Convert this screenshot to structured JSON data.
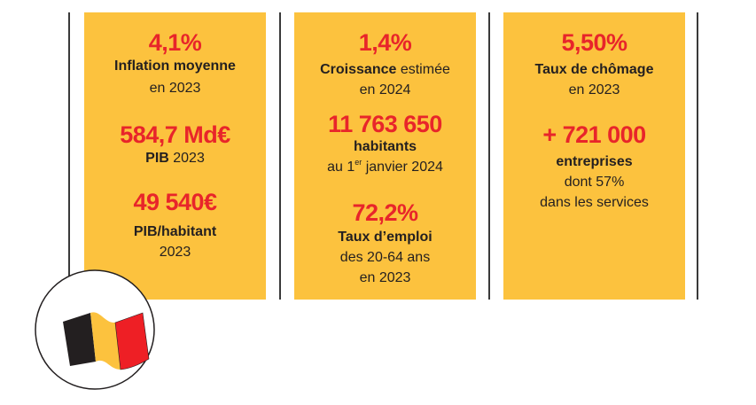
{
  "colors": {
    "accent": "#e8252a",
    "card": "#fcc23e",
    "text": "#231f20"
  },
  "cards": [
    {
      "stats": [
        {
          "value": "4,1%",
          "label_bold": "Inflation moyenne",
          "label": "en 2023"
        },
        {
          "value": "584,7 Md€",
          "label_bold": "PIB",
          "label": " 2023"
        },
        {
          "value": "49 540€",
          "label_bold": "PIB/habitant",
          "label": "2023"
        }
      ]
    },
    {
      "stats": [
        {
          "value": "1,4%",
          "label_bold": "Croissance",
          "label_inline": " estimée",
          "label": "en 2024"
        },
        {
          "value": "11 763 650",
          "label_bold": "habitants",
          "label_pre": "au 1",
          "label_sup": "er",
          "label_post": " janvier 2024"
        },
        {
          "value": "72,2%",
          "label_bold": "Taux d’emploi",
          "label": "des 20-64 ans",
          "label2": "en 2023"
        }
      ]
    },
    {
      "stats": [
        {
          "value": "5,50%",
          "label_bold": "Taux de chômage",
          "label": "en 2023"
        },
        {
          "value": "+ 721 000",
          "label_bold": "entreprises",
          "label": "dont 57%",
          "label2": "dans les services"
        }
      ]
    }
  ],
  "flag": {
    "icon": "belgian-flag-icon",
    "colors": [
      "#231f20",
      "#fcc23e",
      "#ee1f25"
    ]
  }
}
